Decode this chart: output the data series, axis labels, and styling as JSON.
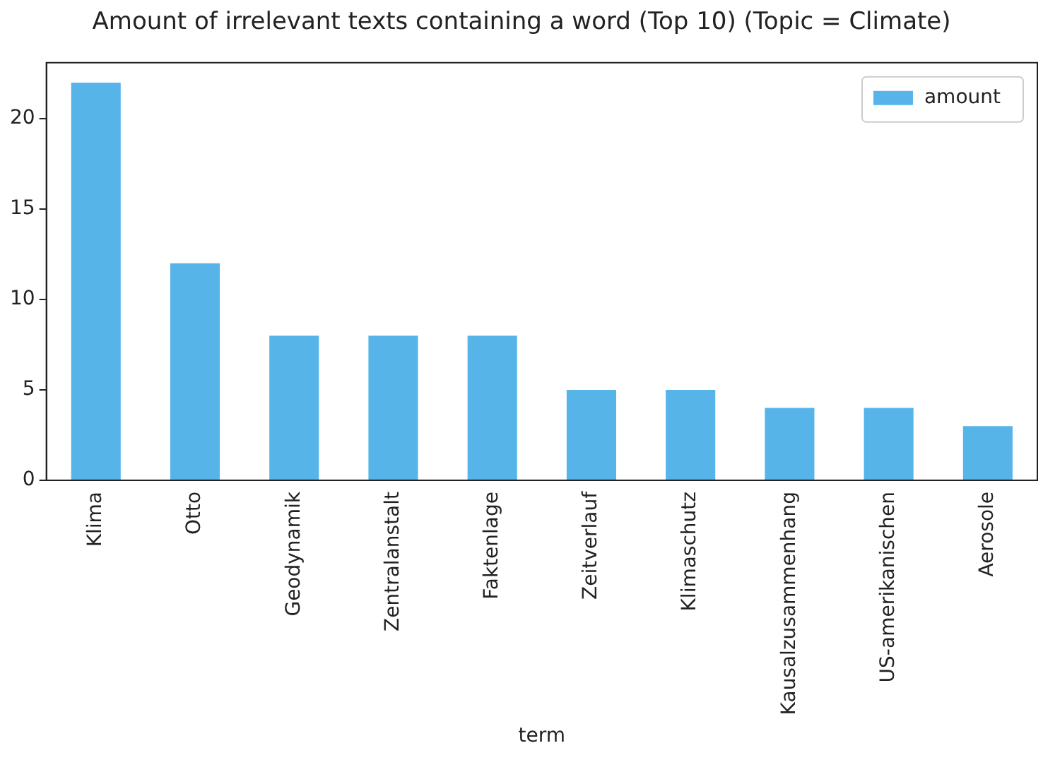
{
  "chart_data": {
    "type": "bar",
    "title": "Amount of irrelevant texts containing a word (Top 10) (Topic = Climate)",
    "xlabel": "term",
    "categories": [
      "Klima",
      "Otto",
      "Geodynamik",
      "Zentralanstalt",
      "Faktenlage",
      "Zeitverlauf",
      "Klimaschutz",
      "Kausalzusammenhang",
      "US-amerikanischen",
      "Aerosole"
    ],
    "series": [
      {
        "name": "amount",
        "color": "#56b4e9",
        "values": [
          22,
          12,
          8,
          8,
          8,
          5,
          5,
          4,
          4,
          3
        ]
      }
    ],
    "ylim": [
      0,
      23.1
    ],
    "yticks": [
      0,
      5,
      10,
      15,
      20
    ],
    "grid": false,
    "legend": "top right"
  }
}
